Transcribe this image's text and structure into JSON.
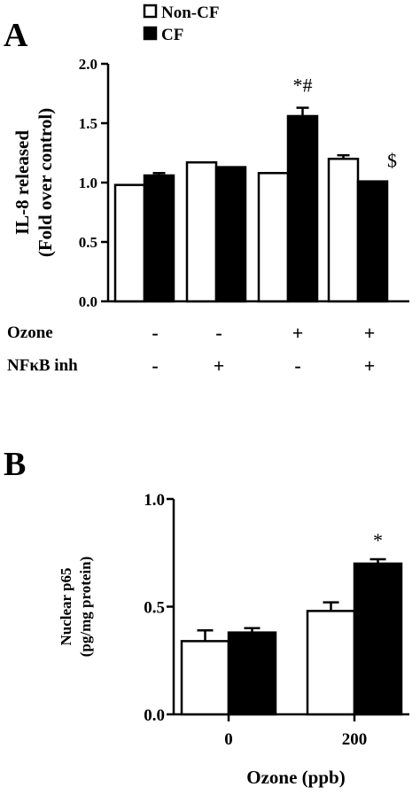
{
  "legend": {
    "items": [
      {
        "label": "Non-CF",
        "color": "#ffffff"
      },
      {
        "label": "CF",
        "color": "#000000"
      }
    ]
  },
  "chart_data": [
    {
      "panel": "A",
      "type": "bar",
      "ylabel": [
        "IL-8 released",
        "(Fold over control)"
      ],
      "ylim": [
        0.0,
        2.0
      ],
      "yticks": [
        "0.0",
        "0.5",
        "1.0",
        "1.5",
        "2.0"
      ],
      "condition_rows": [
        {
          "label": "Ozone",
          "signs": [
            "-",
            "-",
            "+",
            "+"
          ]
        },
        {
          "label": "NFκB inh",
          "signs": [
            "-",
            "+",
            "-",
            "+"
          ]
        }
      ],
      "series": [
        {
          "name": "Non-CF",
          "color": "#ffffff",
          "values": [
            0.98,
            1.17,
            1.08,
            1.2
          ],
          "errors": [
            0.0,
            0.0,
            0.0,
            0.03
          ]
        },
        {
          "name": "CF",
          "color": "#000000",
          "values": [
            1.06,
            1.13,
            1.56,
            1.01
          ],
          "errors": [
            0.02,
            0.0,
            0.07,
            0.0
          ]
        }
      ],
      "annotations": [
        {
          "text": "*#",
          "group": 2,
          "series": 1
        },
        {
          "text": "$",
          "group": 3,
          "series": 1
        }
      ]
    },
    {
      "panel": "B",
      "type": "bar",
      "ylabel": [
        "Nuclear p65",
        "(pg/mg protein)"
      ],
      "xlabel": "Ozone (ppb)",
      "categories": [
        "0",
        "200"
      ],
      "ylim": [
        0.0,
        1.0
      ],
      "yticks": [
        "0.0",
        "0.5",
        "1.0"
      ],
      "series": [
        {
          "name": "Non-CF",
          "color": "#ffffff",
          "values": [
            0.34,
            0.48
          ],
          "errors": [
            0.05,
            0.04
          ]
        },
        {
          "name": "CF",
          "color": "#000000",
          "values": [
            0.38,
            0.7
          ],
          "errors": [
            0.02,
            0.02
          ]
        }
      ],
      "annotations": [
        {
          "text": "*",
          "group": 1,
          "series": 1
        }
      ]
    }
  ]
}
